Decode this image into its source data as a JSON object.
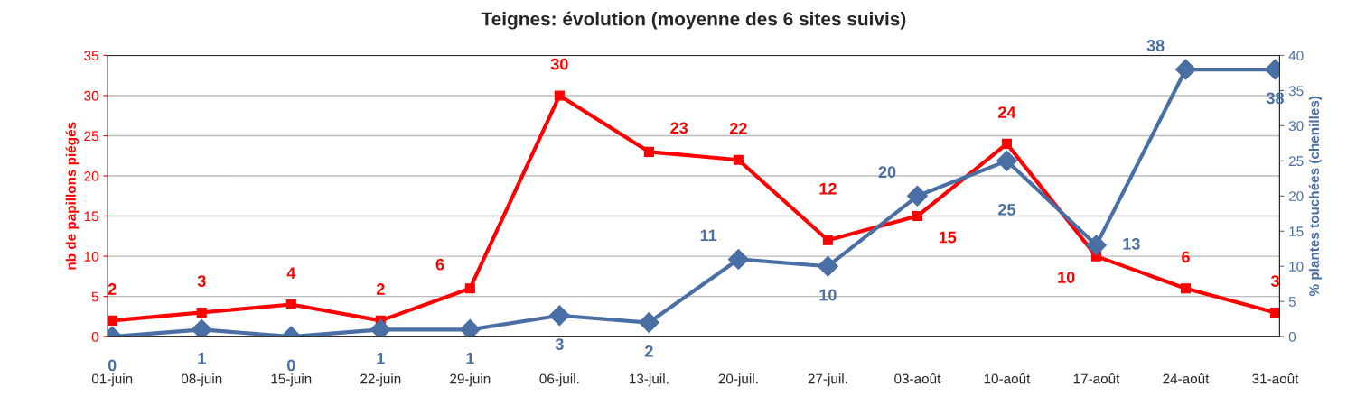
{
  "chart_data": {
    "type": "line",
    "title": "Teignes: évolution (moyenne des 6 sites suivis)",
    "ylabel": "nb de papillons piégés",
    "y2label": "% plantes touchées (chenilles)",
    "categories": [
      "01-juin",
      "08-juin",
      "15-juin",
      "22-juin",
      "29-juin",
      "06-juil.",
      "13-juil.",
      "20-juil.",
      "27-juil.",
      "03-août",
      "10-août",
      "17-août",
      "24-août",
      "31-août"
    ],
    "series": [
      {
        "color": "#ff0000",
        "marker": "square",
        "values": [
          2,
          3,
          4,
          2,
          6,
          30,
          23,
          22,
          12,
          15,
          24,
          10,
          6,
          3
        ]
      },
      {
        "color": "#4a6fa5",
        "marker": "diamond",
        "axis": "y2",
        "values": [
          0,
          1,
          0,
          1,
          1,
          3,
          2,
          11,
          10,
          20,
          25,
          13,
          38,
          38
        ]
      }
    ],
    "ylim": [
      0,
      35
    ],
    "yticks": [
      0,
      5,
      10,
      15,
      20,
      25,
      30,
      35
    ],
    "y2lim": [
      0,
      40
    ],
    "y2ticks": [
      0,
      5,
      10,
      15,
      20,
      25,
      30,
      35,
      40
    ],
    "grid": "y",
    "data_labels": true,
    "line_style": "solid"
  }
}
